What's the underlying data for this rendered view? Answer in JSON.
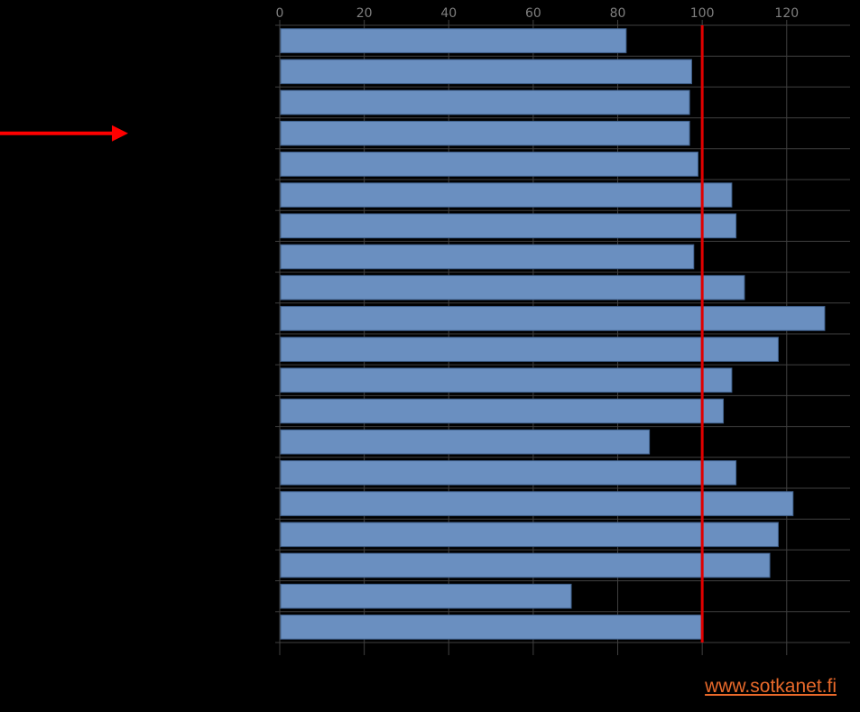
{
  "chart_data": {
    "type": "bar",
    "orientation": "horizontal",
    "title": "",
    "xlabel": "",
    "ylabel": "",
    "categories": [
      "",
      "",
      "",
      "",
      "",
      "",
      "",
      "",
      "",
      "",
      "",
      "",
      "",
      "",
      "",
      "",
      "",
      "",
      "",
      ""
    ],
    "values": [
      82,
      97.5,
      97,
      97,
      99,
      107,
      108,
      98,
      110,
      129,
      118,
      107,
      105,
      87.5,
      108,
      121.5,
      118,
      116,
      69,
      100
    ],
    "xlim": [
      0,
      135
    ],
    "xticks": [
      0,
      20,
      40,
      60,
      80,
      100,
      120
    ],
    "xtick_labels": [
      "0",
      "20",
      "40",
      "60",
      "80",
      "100",
      "120"
    ],
    "reference_line": {
      "value": 100,
      "color": "#e00000"
    },
    "highlight_arrow_category_index": 3,
    "bar_color": "#6a8fc0",
    "grid": true
  },
  "source": {
    "link_text": "www.sotkanet.fi",
    "color": "#e8692a"
  }
}
